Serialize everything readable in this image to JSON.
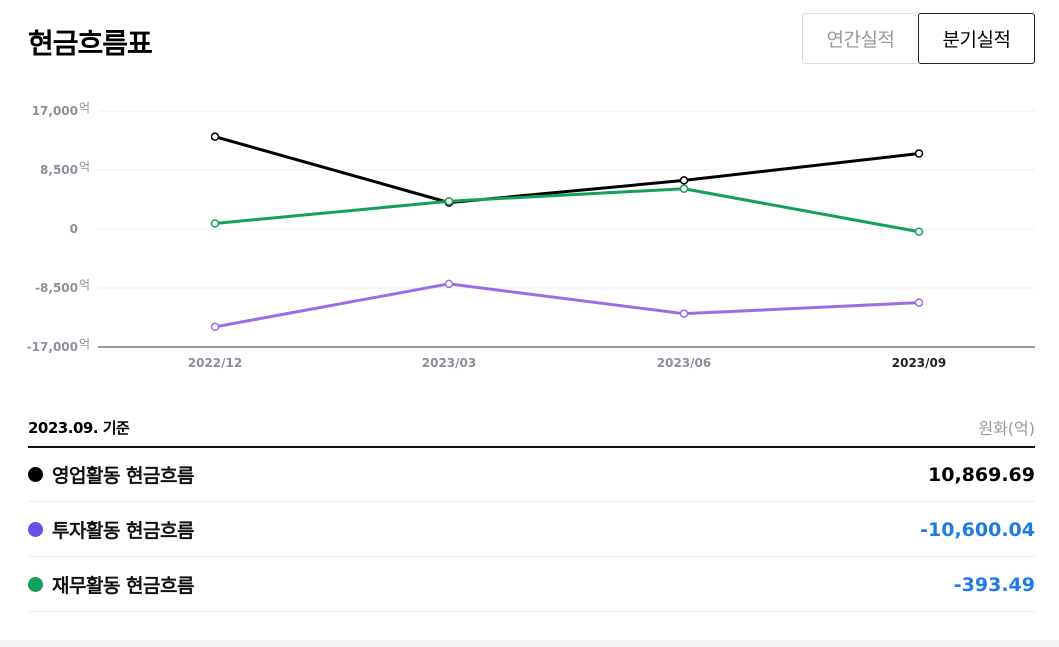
{
  "title": "현금흐름표",
  "tabs": [
    {
      "label": "연간실적",
      "active": false
    },
    {
      "label": "분기실적",
      "active": true
    }
  ],
  "chart_data": {
    "type": "line",
    "categories": [
      "2022/12",
      "2023/03",
      "2023/06",
      "2023/09"
    ],
    "highlight_category": "2023/09",
    "ylim": [
      -17000,
      17000
    ],
    "y_ticks": [
      17000,
      8500,
      0,
      -8500,
      -17000
    ],
    "y_tick_labels": [
      "17,000",
      "8,500",
      "0",
      "-8,500",
      "-17,000"
    ],
    "y_unit": "억",
    "grid": true,
    "series": [
      {
        "name": "영업활동 현금흐름",
        "color": "#000000",
        "values": [
          13300,
          3800,
          7000,
          10869.69
        ]
      },
      {
        "name": "투자활동 현금흐름",
        "color": "#9b6ce8",
        "values": [
          -14100,
          -7900,
          -12200,
          -10600.04
        ]
      },
      {
        "name": "재무활동 현금흐름",
        "color": "#14a05a",
        "values": [
          800,
          4000,
          5800,
          -393.49
        ]
      }
    ]
  },
  "summary": {
    "as_of": "2023.09. 기준",
    "unit": "원화(억)",
    "rows": [
      {
        "label": "영업활동 현금흐름",
        "value": "10,869.69",
        "dot_color": "#000000",
        "value_color": "#000000"
      },
      {
        "label": "투자활동 현금흐름",
        "value": "-10,600.04",
        "dot_color": "#6b4ee6",
        "value_color": "#1e7be6"
      },
      {
        "label": "재무활동 현금흐름",
        "value": "-393.49",
        "dot_color": "#14a05a",
        "value_color": "#1e7be6"
      }
    ]
  }
}
